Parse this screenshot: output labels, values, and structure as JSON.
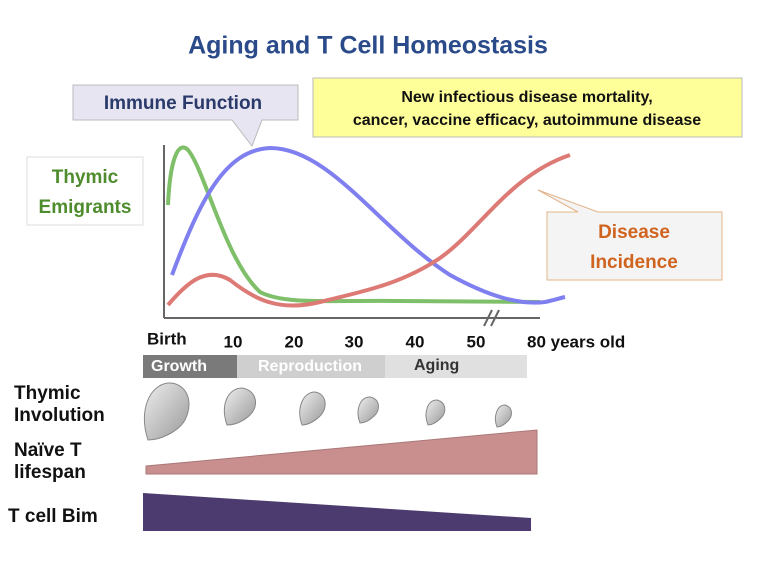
{
  "title": "Aging and T Cell Homeostasis",
  "callouts": {
    "immune_function": "Immune Function",
    "outcomes": {
      "lines": [
        "New infectious disease mortality,",
        "cancer, vaccine efficacy, autoimmune disease"
      ]
    },
    "thymic_emigrants": {
      "lines": [
        "Thymic",
        "Emigrants"
      ]
    },
    "disease_incidence": {
      "lines": [
        "Disease",
        "Incidence"
      ]
    }
  },
  "age_labels": [
    "Birth",
    "10",
    "20",
    "30",
    "40",
    "50",
    "80 years old"
  ],
  "stages": [
    "Growth",
    "Reproduction",
    "Aging"
  ],
  "rows": {
    "thymic_involution": {
      "lines": [
        "Thymic",
        "Involution"
      ]
    },
    "naive_t_lifespan": {
      "lines": [
        "Naïve T",
        "lifespan"
      ]
    },
    "t_cell_bim": "T cell Bim"
  }
}
